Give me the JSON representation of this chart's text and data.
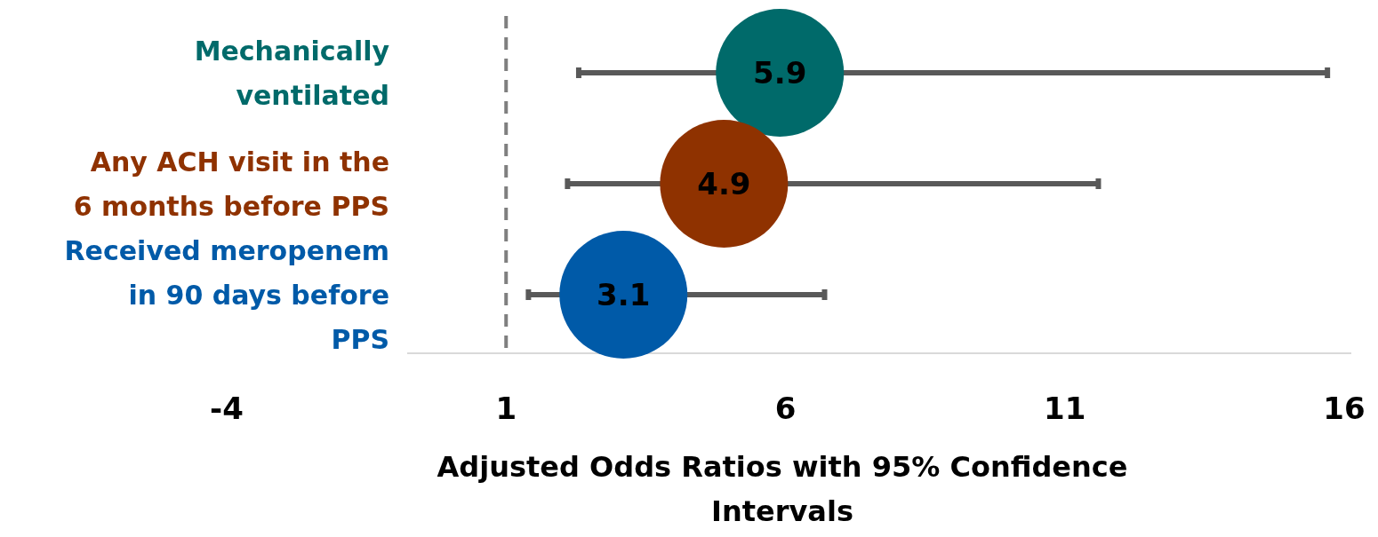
{
  "chart_data": {
    "type": "scatter",
    "orientation": "horizontal",
    "xlabel": "Adjusted Odds Ratios with 95% Confidence Intervals",
    "categories": [
      "Mechanically ventilated",
      "Any ACH visit in the 6 months before PPS",
      "Received meropenem in 90 days before PPS"
    ],
    "values": [
      5.9,
      4.9,
      3.1
    ],
    "colors": [
      "#006a6a",
      "#8f3200",
      "#005aa8"
    ],
    "errors": [
      [
        2.3,
        15.7
      ],
      [
        2.1,
        11.6
      ],
      [
        1.4,
        6.7
      ]
    ],
    "data_labels": true,
    "marker": "circle",
    "xlim": [
      -4,
      16
    ],
    "xticks": [
      -4,
      1,
      6,
      11,
      16
    ],
    "ref_lines": [
      {
        "axis": "x",
        "value": 1,
        "line_style": "dashed",
        "color": "#7f7f7f"
      }
    ],
    "grid": false
  }
}
